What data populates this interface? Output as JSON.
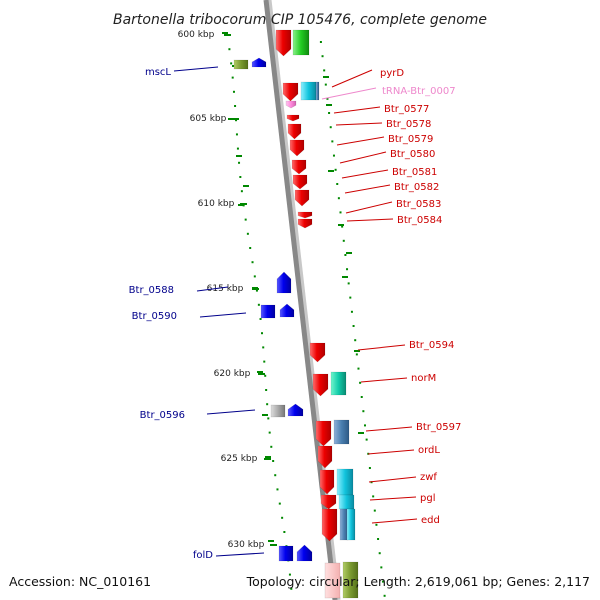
{
  "title": "Bartonella tribocorum CIP 105476, complete genome",
  "footer": {
    "accession": "Accession: NC_010161",
    "topology": "Topology: circular; Length: 2,619,061 bp; Genes: 2,117"
  },
  "scale_labels": [
    "600 kbp",
    "605 kbp",
    "610 kbp",
    "615 kbp",
    "620 kbp",
    "625 kbp",
    "630 kbp"
  ],
  "colors": {
    "forward_label": "#cc0000",
    "reverse_label": "#00008b",
    "trna_label": "#ee88cc",
    "gene_red": "#ee0000",
    "gene_blue": "#0000ee",
    "backbone": "#888888",
    "tick": "#008800"
  },
  "reverse_genes": [
    {
      "label": "mscL"
    },
    {
      "label": "Btr_0588"
    },
    {
      "label": "Btr_0590"
    },
    {
      "label": "Btr_0596"
    },
    {
      "label": "folD"
    }
  ],
  "forward_genes": [
    {
      "label": "pyrD"
    },
    {
      "label": "tRNA-Btr_0007"
    },
    {
      "label": "Btr_0577"
    },
    {
      "label": "Btr_0578"
    },
    {
      "label": "Btr_0579"
    },
    {
      "label": "Btr_0580"
    },
    {
      "label": "Btr_0581"
    },
    {
      "label": "Btr_0582"
    },
    {
      "label": "Btr_0583"
    },
    {
      "label": "Btr_0584"
    },
    {
      "label": "Btr_0594"
    },
    {
      "label": "norM"
    },
    {
      "label": "Btr_0597"
    },
    {
      "label": "ordL"
    },
    {
      "label": "zwf"
    },
    {
      "label": "pgl"
    },
    {
      "label": "edd"
    }
  ]
}
